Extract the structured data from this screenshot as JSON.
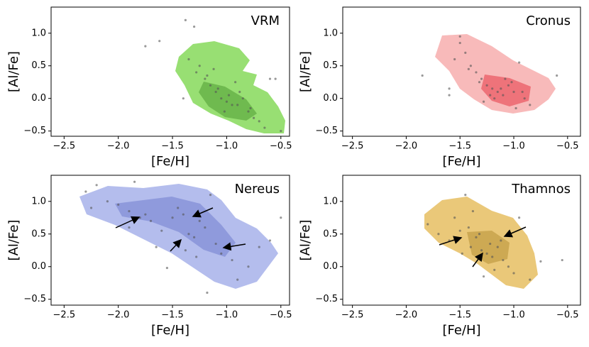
{
  "chart_data": [
    {
      "type": "scatter",
      "title": "VRM",
      "xlabel": "[Fe/H]",
      "ylabel": "[Al/Fe]",
      "color": "#7fd454",
      "x": [
        -1.75,
        -1.62,
        -1.38,
        -1.3,
        -1.25,
        -1.2,
        -1.15,
        -1.1,
        -1.05,
        -1.0,
        -0.95,
        -0.9,
        -0.85,
        -0.8,
        -0.75,
        -0.7,
        -0.65,
        -0.6,
        -1.35,
        -1.28,
        -1.18,
        -1.08,
        -0.98,
        -0.88,
        -0.78,
        -1.12,
        -1.02,
        -0.92,
        -0.55,
        -0.5,
        -1.4
      ],
      "y": [
        0.8,
        0.88,
        1.2,
        1.1,
        0.5,
        0.3,
        0.2,
        0.1,
        0.0,
        -0.05,
        -0.1,
        -0.1,
        0.0,
        -0.2,
        -0.3,
        -0.35,
        -0.45,
        0.3,
        0.6,
        0.4,
        0.35,
        0.15,
        0.05,
        0.1,
        -0.15,
        0.45,
        -0.2,
        0.25,
        0.3,
        -0.5,
        0.0
      ],
      "xlim": [
        -2.62,
        -0.42
      ],
      "ylim": [
        -0.58,
        1.4
      ],
      "xticks": [
        {
          "value": -2.5,
          "label": "−2.5"
        },
        {
          "value": -2.0,
          "label": "−2.0"
        },
        {
          "value": -1.5,
          "label": "−1.5"
        },
        {
          "value": -1.0,
          "label": "−1.0"
        },
        {
          "value": -0.5,
          "label": "−0.5"
        }
      ],
      "yticks": [
        {
          "value": -0.5,
          "label": "−0.5"
        },
        {
          "value": 0.0,
          "label": "0.0"
        },
        0.5,
        {
          "value": 1.0,
          "label": "1.0"
        }
      ]
    },
    {
      "type": "scatter",
      "title": "Cronus",
      "xlabel": "[Fe/H]",
      "ylabel": "[Al/Fe]",
      "color": "#f28c8c",
      "x": [
        -1.85,
        -1.6,
        -1.5,
        -1.45,
        -1.4,
        -1.35,
        -1.3,
        -1.25,
        -1.2,
        -1.15,
        -1.1,
        -1.05,
        -1.0,
        -0.95,
        -0.9,
        -0.85,
        -0.6,
        -1.55,
        -1.42,
        -1.32,
        -1.22,
        -1.12,
        -1.02,
        -0.92,
        -1.6,
        -1.28,
        -1.18,
        -1.08,
        -0.98,
        -1.5
      ],
      "y": [
        0.35,
        0.15,
        0.95,
        0.7,
        0.5,
        0.4,
        0.3,
        0.2,
        0.15,
        0.1,
        0.05,
        0.2,
        0.1,
        0.55,
        0.0,
        -0.1,
        0.35,
        0.6,
        0.45,
        0.25,
        0.05,
        0.15,
        0.25,
        0.1,
        0.05,
        -0.05,
        0.0,
        0.3,
        -0.15,
        0.85
      ],
      "xlim": [
        -2.59,
        -0.38
      ],
      "ylim": [
        -0.58,
        1.4
      ],
      "xticks": [
        {
          "value": -2.5,
          "label": "−2.5"
        },
        {
          "value": -2.0,
          "label": "−2.0"
        },
        {
          "value": -1.5,
          "label": "−1.5"
        },
        {
          "value": -1.0,
          "label": "−1.0"
        },
        {
          "value": -0.5,
          "label": "−0.5"
        }
      ],
      "yticks": [
        {
          "value": -0.5,
          "label": "−0.5"
        },
        {
          "value": 0.0,
          "label": "0.0"
        },
        0.5,
        {
          "value": 1.0,
          "label": "1.0"
        }
      ]
    },
    {
      "type": "scatter",
      "title": "Nereus",
      "xlabel": "[Fe/H]",
      "ylabel": "[Al/Fe]",
      "color": "#8795e0",
      "x": [
        -2.3,
        -2.2,
        -2.1,
        -2.0,
        -1.9,
        -1.85,
        -1.8,
        -1.75,
        -1.7,
        -1.65,
        -1.6,
        -1.5,
        -1.45,
        -1.4,
        -1.35,
        -1.3,
        -1.25,
        -1.2,
        -1.15,
        -1.1,
        -1.05,
        -1.0,
        -0.95,
        -0.9,
        -0.8,
        -0.7,
        -0.6,
        -0.5,
        -1.55,
        -1.38,
        -1.28,
        -1.18,
        -2.25,
        -1.9
      ],
      "y": [
        1.15,
        1.25,
        1.0,
        0.95,
        0.85,
        1.3,
        0.75,
        0.8,
        0.7,
        0.3,
        0.55,
        0.75,
        0.9,
        0.8,
        0.5,
        0.45,
        0.7,
        0.6,
        1.1,
        0.35,
        0.2,
        0.3,
        0.1,
        -0.2,
        0.0,
        0.3,
        0.4,
        0.75,
        -0.02,
        0.25,
        0.15,
        -0.4,
        0.9,
        0.6
      ],
      "xlim": [
        -2.62,
        -0.42
      ],
      "ylim": [
        -0.59,
        1.4
      ],
      "xticks": [
        {
          "value": -2.5,
          "label": "−2.5"
        },
        {
          "value": -2.0,
          "label": "−2.0"
        },
        {
          "value": -1.5,
          "label": "−1.5"
        },
        {
          "value": -1.0,
          "label": "−1.0"
        },
        {
          "value": -0.5,
          "label": "−0.5"
        }
      ],
      "yticks": [
        {
          "value": -0.5,
          "label": "−0.5"
        },
        {
          "value": 0.0,
          "label": "0.0"
        },
        0.5,
        {
          "value": 1.0,
          "label": "1.0"
        }
      ]
    },
    {
      "type": "scatter",
      "title": "Thamnos",
      "xlabel": "[Fe/H]",
      "ylabel": "[Al/Fe]",
      "color": "#e3bb55",
      "x": [
        -1.8,
        -1.7,
        -1.6,
        -1.55,
        -1.5,
        -1.45,
        -1.4,
        -1.35,
        -1.3,
        -1.25,
        -1.2,
        -1.15,
        -1.1,
        -1.05,
        -1.0,
        -0.95,
        -0.85,
        -0.75,
        -0.55,
        -1.42,
        -1.32,
        -1.22,
        -1.12,
        -1.28,
        -1.18,
        -1.38,
        -1.48
      ],
      "y": [
        0.65,
        0.5,
        0.4,
        0.75,
        0.55,
        1.1,
        0.3,
        0.45,
        0.25,
        0.2,
        0.15,
        0.3,
        0.1,
        0.0,
        -0.1,
        0.75,
        -0.2,
        0.08,
        0.1,
        0.6,
        0.5,
        0.35,
        0.4,
        -0.15,
        -0.05,
        0.85,
        0.2
      ],
      "xlim": [
        -2.59,
        -0.38
      ],
      "ylim": [
        -0.59,
        1.4
      ],
      "xticks": [
        {
          "value": -2.5,
          "label": "−2.5"
        },
        {
          "value": -2.0,
          "label": "−2.0"
        },
        {
          "value": -1.5,
          "label": "−1.5"
        },
        {
          "value": -1.0,
          "label": "−1.0"
        },
        {
          "value": -0.5,
          "label": "−0.5"
        }
      ],
      "yticks": [
        {
          "value": -0.5,
          "label": "−0.5"
        },
        {
          "value": 0.0,
          "label": "0.0"
        },
        0.5,
        {
          "value": 1.0,
          "label": "1.0"
        }
      ]
    }
  ]
}
